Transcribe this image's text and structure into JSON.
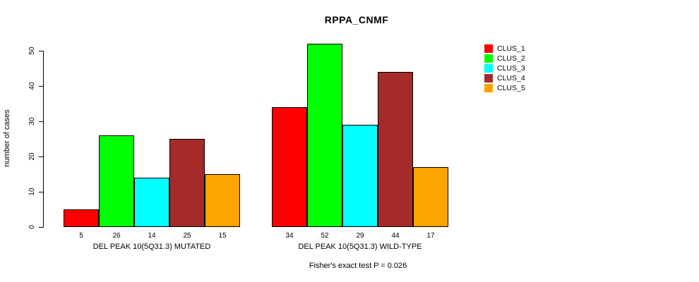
{
  "chart_data": {
    "type": "bar",
    "title": "RPPA_CNMF",
    "ylabel": "number of cases",
    "ylim": [
      0,
      50
    ],
    "yticks": [
      0,
      10,
      20,
      30,
      40,
      50
    ],
    "grid": false,
    "legend_position": "top-right",
    "bar_border_color": "#000000",
    "series": [
      {
        "name": "CLUS_1",
        "color": "#FF0000"
      },
      {
        "name": "CLUS_2",
        "color": "#00FF00"
      },
      {
        "name": "CLUS_3",
        "color": "#00FFFF"
      },
      {
        "name": "CLUS_4",
        "color": "#A52A2A"
      },
      {
        "name": "CLUS_5",
        "color": "#FFA500"
      }
    ],
    "groups": [
      {
        "label": "DEL PEAK 10(5Q31.3) MUTATED",
        "values": [
          5,
          26,
          14,
          25,
          15
        ]
      },
      {
        "label": "DEL PEAK 10(5Q31.3) WILD-TYPE",
        "values": [
          34,
          52,
          29,
          44,
          17
        ]
      }
    ],
    "annotation": "Fisher's exact test P = 0.026"
  }
}
